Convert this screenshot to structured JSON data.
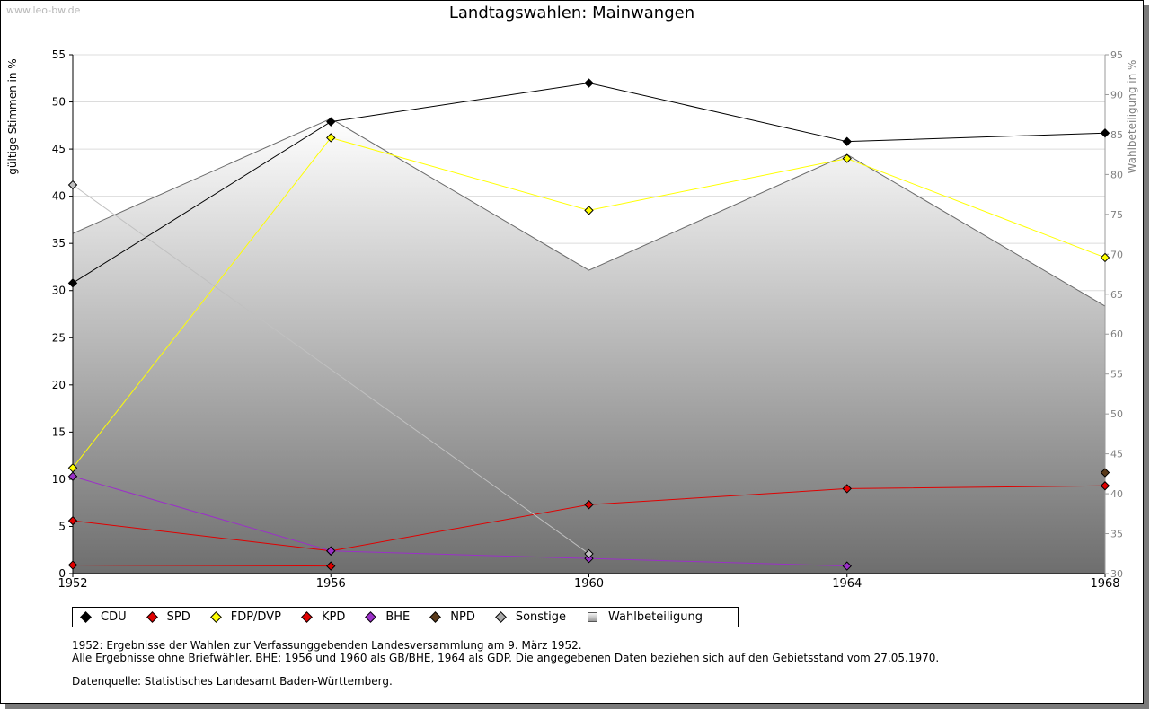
{
  "watermark": "www.leo-bw.de",
  "chart_data": {
    "type": "line",
    "title": "Landtagswahlen: Mainwangen",
    "ylabel": "gültige Stimmen in %",
    "y2label": "Wahlbeteiligung in %",
    "x": [
      1952,
      1956,
      1960,
      1964,
      1968
    ],
    "ylim": [
      0,
      55
    ],
    "y2lim": [
      30,
      95
    ],
    "yticks": [
      0,
      5,
      10,
      15,
      20,
      25,
      30,
      35,
      40,
      45,
      50,
      55
    ],
    "y2ticks": [
      30,
      35,
      40,
      45,
      50,
      55,
      60,
      65,
      70,
      75,
      80,
      85,
      90,
      95
    ],
    "grid": true,
    "legend_position": "bottom",
    "series": [
      {
        "name": "CDU",
        "color": "#000000",
        "values": [
          30.8,
          47.9,
          52.0,
          45.8,
          46.7
        ]
      },
      {
        "name": "SPD",
        "color": "#e00000",
        "values": [
          5.6,
          2.4,
          7.3,
          9.0,
          9.3
        ]
      },
      {
        "name": "FDP/DVP",
        "color": "#ffff00",
        "values": [
          11.2,
          46.2,
          38.5,
          44.0,
          33.5
        ]
      },
      {
        "name": "KPD",
        "color": "#e00000",
        "values": [
          0.9,
          0.8,
          null,
          null,
          null
        ]
      },
      {
        "name": "BHE",
        "color": "#9b30c8",
        "values": [
          10.3,
          2.4,
          1.6,
          0.8,
          null
        ]
      },
      {
        "name": "NPD",
        "color": "#5a3a1a",
        "values": [
          null,
          null,
          null,
          null,
          10.7
        ]
      },
      {
        "name": "Sonstige",
        "color": "#c0c0c0",
        "values": [
          41.2,
          null,
          2.1,
          null,
          null
        ]
      }
    ],
    "turnout": {
      "name": "Wahlbeteiligung",
      "values": [
        72.6,
        87.0,
        68.0,
        82.5,
        63.5
      ]
    }
  },
  "legend": [
    {
      "label": "CDU",
      "color": "#000000",
      "kind": "dot"
    },
    {
      "label": "SPD",
      "color": "#e00000",
      "kind": "dot"
    },
    {
      "label": "FDP/DVP",
      "color": "#ffff00",
      "kind": "dot"
    },
    {
      "label": "KPD",
      "color": "#e00000",
      "kind": "dot"
    },
    {
      "label": "BHE",
      "color": "#9b30c8",
      "kind": "dot"
    },
    {
      "label": "NPD",
      "color": "#5a3a1a",
      "kind": "dot"
    },
    {
      "label": "Sonstige",
      "color": "#a8a8a8",
      "kind": "dot"
    },
    {
      "label": "Wahlbeteiligung",
      "color": "#bbbbbb",
      "kind": "area"
    }
  ],
  "notes": {
    "line1": "1952: Ergebnisse der Wahlen zur Verfassunggebenden Landesversammlung am 9. März 1952.",
    "line2": "Alle Ergebnisse ohne Briefwähler. BHE: 1956 und 1960 als GB/BHE, 1964 als GDP. Die angegebenen Daten beziehen sich auf den Gebietsstand vom 27.05.1970.",
    "source": "Datenquelle: Statistisches Landesamt Baden-Württemberg."
  }
}
